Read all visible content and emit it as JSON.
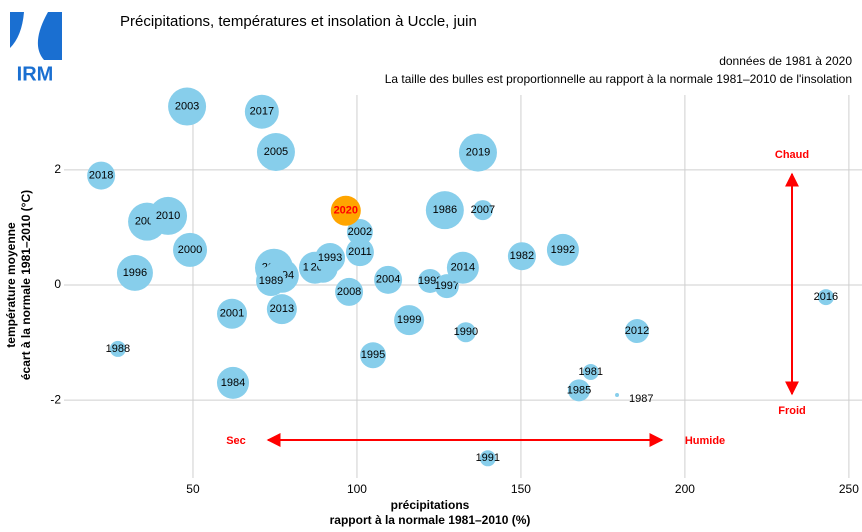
{
  "logo": "IRM",
  "chart_data": {
    "type": "bubble",
    "title": "Précipitations, températures et insolation à Uccle, juin",
    "subtitle": [
      "données de 1981 à 2020",
      "La taille des bulles est proportionnelle au rapport à la normale 1981–2010 de l'insolation"
    ],
    "xlabel": [
      "précipitations",
      "rapport à la normale 1981–2010 (%)"
    ],
    "ylabel": [
      "température moyenne",
      "écart à la normale 1981–2010 (°C)"
    ],
    "annotations": [
      "Chaud",
      "Froid",
      "Sec",
      "Humide"
    ],
    "xlim": [
      12.5,
      254
    ],
    "ylim": [
      -3.3,
      3.3
    ],
    "xticks": [
      50,
      100,
      150,
      200,
      250
    ],
    "yticks": [
      -2,
      0,
      2
    ],
    "grid": true,
    "series": [
      {
        "color": "#87ceeb",
        "label_color": "#000000",
        "labels": [
          "2003",
          "2017",
          "2005",
          "2018",
          "2006",
          "2010",
          "2000",
          "1996",
          "1988",
          "2001",
          "1984",
          "2015",
          "1994",
          "1989",
          "2013",
          "1983",
          "2009",
          "1993",
          "2002",
          "2011",
          "2008",
          "2004",
          "1995",
          "1999",
          "1986",
          "2007",
          "2019",
          "1998",
          "1997",
          "2014",
          "1990",
          "1991",
          "1982",
          "1992",
          "1981",
          "1985",
          "1987",
          "2012",
          "2016"
        ],
        "x": [
          48.2,
          71.0,
          75.3,
          22.0,
          36.0,
          42.4,
          49.1,
          32.3,
          27.1,
          61.9,
          62.2,
          74.7,
          77.1,
          73.8,
          77.1,
          87.2,
          89.6,
          91.8,
          100.9,
          100.9,
          97.6,
          109.5,
          104.9,
          115.9,
          126.8,
          138.4,
          136.9,
          122.3,
          127.4,
          132.3,
          133.2,
          139.9,
          150.3,
          162.8,
          171.3,
          167.7,
          179.3,
          185.4,
          243.0
        ],
        "values": [
          3.1,
          3.01,
          2.31,
          1.9,
          1.1,
          1.2,
          0.61,
          0.21,
          -1.11,
          -0.5,
          -1.7,
          0.3,
          0.16,
          0.07,
          -0.42,
          0.3,
          0.3,
          0.47,
          0.92,
          0.57,
          -0.12,
          0.09,
          -1.22,
          -0.61,
          1.3,
          1.3,
          2.3,
          0.07,
          -0.02,
          0.3,
          -0.82,
          -3.01,
          0.5,
          0.61,
          -1.51,
          -1.83,
          -1.91,
          -0.8,
          -0.21
        ],
        "sizes": [
          133,
          119,
          133,
          98,
          133,
          133,
          119,
          126,
          56,
          105,
          112,
          133,
          119,
          105,
          105,
          112,
          105,
          105,
          91,
          98,
          98,
          98,
          91,
          105,
          133,
          70,
          133,
          84,
          84,
          112,
          70,
          56,
          98,
          112,
          56,
          77,
          14,
          84,
          56
        ]
      },
      {
        "color": "#ffa500",
        "label_color": "#ff0000",
        "labels": [
          "2020"
        ],
        "x": [
          96.6
        ],
        "values": [
          1.29
        ],
        "sizes": [
          105
        ]
      }
    ]
  }
}
